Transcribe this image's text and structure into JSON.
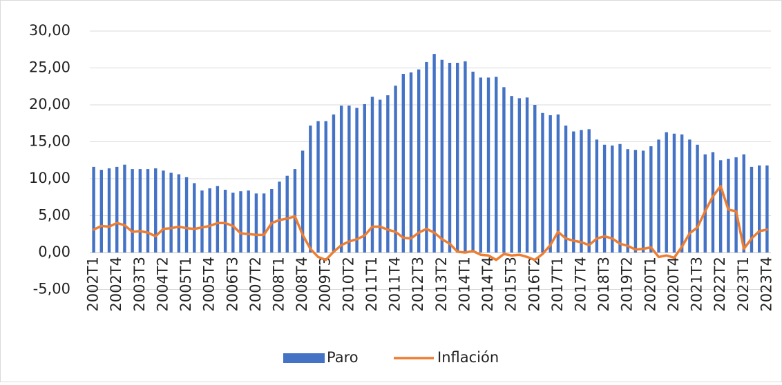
{
  "chart_data": {
    "type": "combo",
    "categories": [
      "2002T1",
      null,
      null,
      "2002T4",
      null,
      null,
      "2003T3",
      null,
      null,
      "2004T2",
      null,
      null,
      "2005T1",
      null,
      null,
      "2005T4",
      null,
      null,
      "2006T3",
      null,
      null,
      "2007T2",
      null,
      null,
      "2008T1",
      null,
      null,
      "2008T4",
      null,
      null,
      "2009T3",
      null,
      null,
      "2010T2",
      null,
      null,
      "2011T1",
      null,
      null,
      "2011T4",
      null,
      null,
      "2012T3",
      null,
      null,
      "2013T2",
      null,
      null,
      "2014T1",
      null,
      null,
      "2014T4",
      null,
      null,
      "2015T3",
      null,
      null,
      "2016T2",
      null,
      null,
      "2017T1",
      null,
      null,
      "2017T4",
      null,
      null,
      "2018T3",
      null,
      null,
      "2019T2",
      null,
      null,
      "2020T1",
      null,
      null,
      "2020T4",
      null,
      null,
      "2021T3",
      null,
      null,
      "2022T2",
      null,
      null,
      "2023T1",
      null,
      null,
      "2023T4"
    ],
    "series": [
      {
        "name": "Paro",
        "type": "bar",
        "color": "#4472c4",
        "values": [
          11.6,
          11.2,
          11.4,
          11.6,
          11.9,
          11.3,
          11.3,
          11.3,
          11.4,
          11.1,
          10.8,
          10.6,
          10.2,
          9.4,
          8.4,
          8.7,
          9.0,
          8.5,
          8.1,
          8.3,
          8.4,
          8.0,
          8.0,
          8.6,
          9.6,
          10.4,
          11.3,
          13.8,
          17.2,
          17.8,
          17.8,
          18.7,
          19.9,
          19.9,
          19.6,
          20.1,
          21.1,
          20.7,
          21.3,
          22.6,
          24.2,
          24.4,
          24.8,
          25.8,
          26.9,
          26.1,
          25.7,
          25.7,
          25.9,
          24.5,
          23.7,
          23.7,
          23.8,
          22.4,
          21.2,
          20.9,
          21.0,
          20.0,
          18.9,
          18.6,
          18.7,
          17.2,
          16.4,
          16.6,
          16.7,
          15.3,
          14.6,
          14.5,
          14.7,
          14.0,
          13.9,
          13.8,
          14.4,
          15.3,
          16.3,
          16.1,
          16.0,
          15.3,
          14.6,
          13.3,
          13.6,
          12.5,
          12.7,
          12.9,
          13.3,
          11.6,
          11.8,
          11.8
        ]
      },
      {
        "name": "Inflación",
        "type": "line",
        "color": "#ed7d31",
        "values": [
          3.1,
          3.6,
          3.5,
          4.0,
          3.7,
          2.8,
          2.9,
          2.7,
          2.2,
          3.2,
          3.3,
          3.5,
          3.3,
          3.2,
          3.4,
          3.6,
          4.0,
          4.0,
          3.6,
          2.6,
          2.5,
          2.4,
          2.4,
          4.0,
          4.4,
          4.6,
          4.9,
          2.4,
          0.5,
          -0.6,
          -1.0,
          0.1,
          1.0,
          1.5,
          1.8,
          2.3,
          3.5,
          3.5,
          3.1,
          2.8,
          2.0,
          1.9,
          2.7,
          3.2,
          2.7,
          1.8,
          1.2,
          0.1,
          0.0,
          0.2,
          -0.3,
          -0.4,
          -1.0,
          -0.2,
          -0.4,
          -0.3,
          -0.6,
          -1.0,
          -0.2,
          1.0,
          2.8,
          1.9,
          1.6,
          1.4,
          1.0,
          1.9,
          2.2,
          1.9,
          1.2,
          0.9,
          0.4,
          0.5,
          0.7,
          -0.6,
          -0.4,
          -0.7,
          0.8,
          2.6,
          3.4,
          5.6,
          7.6,
          9.0,
          5.8,
          5.6,
          0.5,
          1.9,
          2.9,
          3.1
        ]
      }
    ],
    "ylim": [
      -5,
      30
    ],
    "yticks": [
      {
        "value": -5,
        "label": "-5,00"
      },
      {
        "value": 0,
        "label": "0,00"
      },
      {
        "value": 5,
        "label": "5,00"
      },
      {
        "value": 10,
        "label": "10,00"
      },
      {
        "value": 15,
        "label": "15,00"
      },
      {
        "value": 20,
        "label": "20,00"
      },
      {
        "value": 25,
        "label": "25,00"
      },
      {
        "value": 30,
        "label": "30,00"
      }
    ],
    "grid": true,
    "legend": "bottom"
  }
}
